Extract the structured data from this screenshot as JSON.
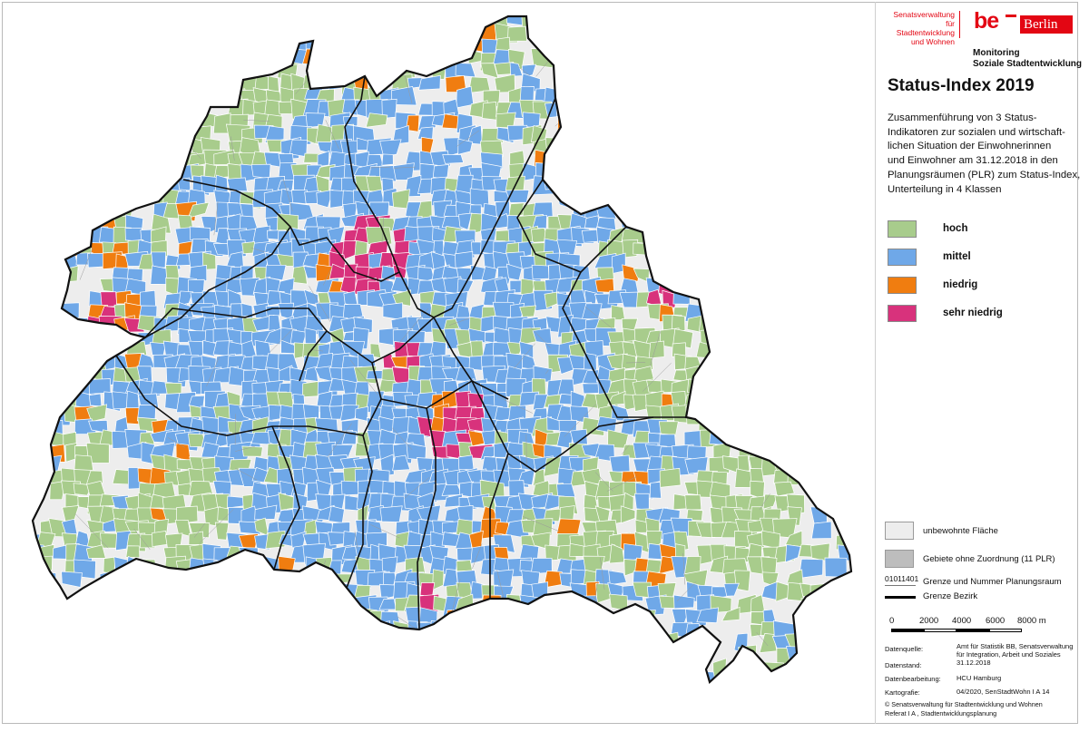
{
  "header": {
    "senat_lines": [
      "Senatsverwaltung",
      "für Stadtentwicklung",
      "und Wohnen"
    ],
    "be_logo": "be",
    "berlin_logo": "Berlin",
    "monitoring_line1": "Monitoring",
    "monitoring_line2": "Soziale Stadtentwicklung"
  },
  "title": "Status-Index 2019",
  "description_lines": [
    "Zusammenführung von 3 Status-",
    "Indikatoren zur sozialen und wirtschaft-",
    "lichen Situation der Einwohnerinnen",
    "und Einwohner am 31.12.2018 in den",
    "Planungsräumen (PLR) zum Status-Index,",
    "Unterteilung in 4 Klassen"
  ],
  "legend_classes": [
    {
      "label": "hoch",
      "color": "#a8cc8c"
    },
    {
      "label": "mittel",
      "color": "#6fa8e8"
    },
    {
      "label": "niedrig",
      "color": "#f07d10"
    },
    {
      "label": "sehr niedrig",
      "color": "#d8327c"
    }
  ],
  "legend_other": [
    {
      "label": "unbewohnte Fläche",
      "color": "#ededed"
    },
    {
      "label": "Gebiete ohne Zuordnung (11 PLR)",
      "color": "#bdbdbd"
    }
  ],
  "plr_code": "01011401",
  "plr_label": "Grenze und Nummer Planungsraum",
  "bezirk_label": "Grenze Bezirk",
  "scale": {
    "ticks": [
      "0",
      "2000",
      "4000",
      "6000",
      "8000 m"
    ]
  },
  "meta": {
    "datenquelle_key": "Datenquelle:",
    "datenquelle_lines": [
      "Amt für Statistik BB, Senatsverwaltung",
      "für Integration, Arbeit und Soziales"
    ],
    "datenstand_key": "Datenstand:",
    "datenstand_value": "31.12.2018",
    "bearbeitung_key": "Datenbearbeitung:",
    "bearbeitung_value": "HCU Hamburg",
    "kartografie_key": "Kartografie:",
    "kartografie_value": "04/2020, SenStadtWohn I A 14",
    "copyright_line1": "©  Senatsverwaltung für Stadtentwicklung und Wohnen",
    "copyright_line2": "Referat I A , Stadtentwicklungsplanung"
  },
  "map": {
    "colors": {
      "uninhabited": "#ededed",
      "border": "#111111",
      "plr_border": "#ffffff"
    }
  }
}
